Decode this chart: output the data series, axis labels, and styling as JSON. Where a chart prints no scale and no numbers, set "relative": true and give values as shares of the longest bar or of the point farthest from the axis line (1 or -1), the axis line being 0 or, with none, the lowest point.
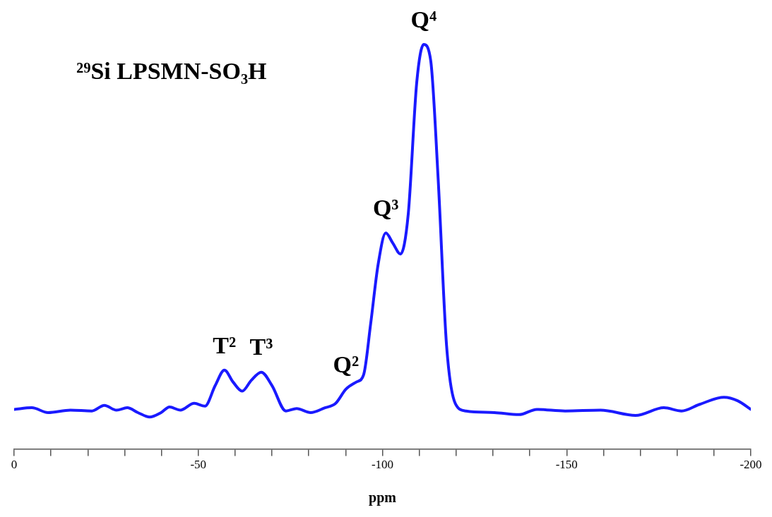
{
  "chart_data": {
    "type": "line",
    "title": "²⁹Si LPSMN-SO₃H",
    "xlabel": "ppm",
    "relative": true,
    "xlim": [
      0,
      -200
    ],
    "xticks": [
      0,
      {
        "value": -10,
        "label": null
      },
      {
        "value": -20,
        "label": null
      },
      {
        "value": -30,
        "label": null
      },
      {
        "value": -40,
        "label": null
      },
      -50,
      {
        "value": -60,
        "label": null
      },
      {
        "value": -70,
        "label": null
      },
      {
        "value": -80,
        "label": null
      },
      {
        "value": -90,
        "label": null
      },
      -100,
      {
        "value": -110,
        "label": null
      },
      {
        "value": -120,
        "label": null
      },
      {
        "value": -130,
        "label": null
      },
      {
        "value": -140,
        "label": null
      },
      -150,
      {
        "value": -160,
        "label": null
      },
      {
        "value": -170,
        "label": null
      },
      {
        "value": -180,
        "label": null
      },
      {
        "value": -190,
        "label": null
      },
      -200
    ],
    "grid": false,
    "legend": false,
    "marker": "none",
    "line_style": "solid",
    "series": [
      {
        "color": "#1a1aff",
        "x": [
          0,
          -4.8,
          -9.2,
          -15.3,
          -21.1,
          -24.5,
          -27.8,
          -30.7,
          -33.6,
          -36.8,
          -39.9,
          -42.2,
          -45.1,
          -48.9,
          -51.8,
          -54.6,
          -57.1,
          -59.4,
          -61.9,
          -64.4,
          -67.1,
          -70.0,
          -73.8,
          -76.7,
          -80.5,
          -84.4,
          -87.2,
          -90.1,
          -93.0,
          -94.9,
          -96.8,
          -98.8,
          -100.9,
          -102.8,
          -104.9,
          -107.0,
          -109.3,
          -111.2,
          -113.1,
          -115.1,
          -117.4,
          -119.8,
          -122.7,
          -130.4,
          -137.1,
          -141.9,
          -149.6,
          -159.2,
          -168.7,
          -176.4,
          -181.2,
          -186.0,
          -192.7,
          -196.5,
          -200
        ],
        "values": [
          0.098,
          0.102,
          0.09,
          0.096,
          0.094,
          0.108,
          0.096,
          0.102,
          0.09,
          0.079,
          0.09,
          0.104,
          0.096,
          0.113,
          0.106,
          0.157,
          0.195,
          0.166,
          0.143,
          0.17,
          0.19,
          0.157,
          0.094,
          0.1,
          0.09,
          0.102,
          0.112,
          0.148,
          0.166,
          0.184,
          0.31,
          0.455,
          0.534,
          0.509,
          0.482,
          0.581,
          0.906,
          1,
          0.96,
          0.671,
          0.256,
          0.112,
          0.094,
          0.09,
          0.085,
          0.098,
          0.094,
          0.096,
          0.083,
          0.102,
          0.094,
          0.11,
          0.128,
          0.119,
          0.098
        ]
      }
    ],
    "annotations": [
      {
        "text": "T²",
        "x": -57.1,
        "y": 0.195
      },
      {
        "text": "T³",
        "x": -67.1,
        "y": 0.19
      },
      {
        "text": "Q²",
        "x": -90.1,
        "y": 0.148
      },
      {
        "text": "Q³",
        "x": -100.9,
        "y": 0.534
      },
      {
        "text": "Q⁴",
        "x": -111.2,
        "y": 1
      }
    ]
  }
}
